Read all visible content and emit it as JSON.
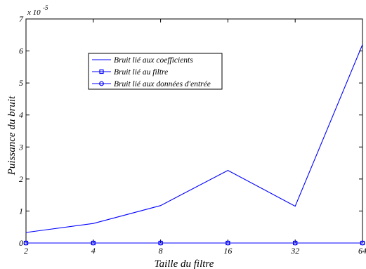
{
  "chart_data": {
    "type": "line",
    "title": "",
    "xlabel": "Taille du filtre",
    "ylabel": "Puissance du bruit",
    "y_multiplier_label": "x 10",
    "y_multiplier_exponent": "-5",
    "x_scale": "log2",
    "categories": [
      "2",
      "4",
      "8",
      "16",
      "32",
      "64"
    ],
    "x": [
      2,
      4,
      8,
      16,
      32,
      64
    ],
    "xlim": [
      2,
      64
    ],
    "ylim": [
      0,
      7
    ],
    "y_ticks": [
      "0",
      "1",
      "2",
      "3",
      "4",
      "5",
      "6",
      "7"
    ],
    "grid": false,
    "legend_position": "top-left",
    "series": [
      {
        "name": "Bruit lié aux coefficients",
        "values": [
          0.33,
          0.61,
          1.17,
          2.27,
          1.15,
          6.2
        ],
        "marker": "none",
        "color": "#0000ff"
      },
      {
        "name": "Bruit lié au filtre",
        "values": [
          0.0,
          0.0,
          0.0,
          0.0,
          0.0,
          0.0
        ],
        "marker": "square",
        "color": "#0000ff"
      },
      {
        "name": "Bruit lié aux données d'entrée",
        "values": [
          0.0,
          0.0,
          0.0,
          0.0,
          0.0,
          0.0
        ],
        "marker": "circle",
        "color": "#0000ff"
      }
    ]
  }
}
